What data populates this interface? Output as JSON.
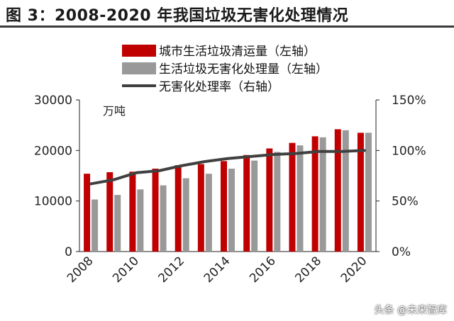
{
  "header": {
    "title": "图 3：2008-2020 年我国垃圾无害化处理情况"
  },
  "watermark": "头条 @未来智库",
  "colors": {
    "series1": "#c00000",
    "series2": "#999999",
    "series3": "#404040",
    "axis": "#222222"
  },
  "chart_data": {
    "type": "bar",
    "title": "",
    "unit_label": "万吨",
    "categories": [
      "2008",
      "2009",
      "2010",
      "2011",
      "2012",
      "2013",
      "2014",
      "2015",
      "2016",
      "2017",
      "2018",
      "2019",
      "2020"
    ],
    "x_tick_labels": [
      "2008",
      "2010",
      "2012",
      "2014",
      "2016",
      "2018",
      "2020"
    ],
    "y_left": {
      "lim": [
        0,
        30000
      ],
      "ticks": [
        "0",
        "10000",
        "20000",
        "30000"
      ],
      "tick_values": [
        0,
        10000,
        20000,
        30000
      ]
    },
    "y_right": {
      "lim": [
        0,
        1.5
      ],
      "ticks": [
        "0%",
        "50%",
        "100%",
        "150%"
      ],
      "tick_values": [
        0,
        0.5,
        1.0,
        1.5
      ]
    },
    "series": [
      {
        "name": "城市生活垃圾清运量（左轴）",
        "kind": "bar",
        "axis": "left",
        "values": [
          15400,
          15700,
          15800,
          16400,
          17100,
          17300,
          17900,
          19100,
          20400,
          21500,
          22800,
          24200,
          23500
        ]
      },
      {
        "name": "生活垃圾无害化处理量（左轴）",
        "kind": "bar",
        "axis": "left",
        "values": [
          10300,
          11200,
          12300,
          13100,
          14500,
          15400,
          16400,
          18000,
          19700,
          21000,
          22600,
          24000,
          23500
        ]
      },
      {
        "name": "无害化处理率（右轴）",
        "kind": "line",
        "axis": "right",
        "values": [
          0.67,
          0.71,
          0.78,
          0.8,
          0.85,
          0.89,
          0.92,
          0.94,
          0.96,
          0.97,
          0.99,
          0.99,
          1.0
        ]
      }
    ],
    "legend_position": "top",
    "grid": false
  }
}
